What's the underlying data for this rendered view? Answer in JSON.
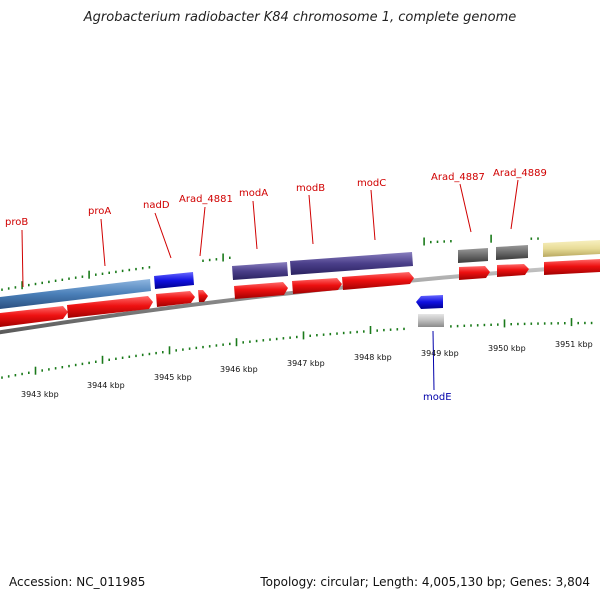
{
  "title": "Agrobacterium radiobacter K84 chromosome 1, complete genome",
  "footer": {
    "accession": "Accession: NC_011985",
    "topology": "Topology: circular; Length: 4,005,130 bp; Genes: 3,804"
  },
  "kbp_labels": [
    "3943 kbp",
    "3944 kbp",
    "3945 kbp",
    "3946 kbp",
    "3947 kbp",
    "3948 kbp",
    "3949 kbp",
    "3950 kbp",
    "3951 kbp"
  ],
  "gene_labels": [
    {
      "name": "proB",
      "color": "red"
    },
    {
      "name": "proA",
      "color": "red"
    },
    {
      "name": "nadD",
      "color": "red"
    },
    {
      "name": "Arad_4881",
      "color": "red"
    },
    {
      "name": "modA",
      "color": "red"
    },
    {
      "name": "modB",
      "color": "red"
    },
    {
      "name": "modC",
      "color": "red"
    },
    {
      "name": "Arad_4887",
      "color": "red"
    },
    {
      "name": "Arad_4889",
      "color": "red"
    },
    {
      "name": "modE",
      "color": "blue"
    }
  ],
  "colors": {
    "backbone": "#8a8a8a",
    "gene_red": "#ee1111",
    "tick_green": "#1a7a1a",
    "label_red": "#d00000",
    "label_blue": "#0000aa",
    "feature_steelblue": "#4a7fb8",
    "feature_blue": "#1010e0",
    "feature_purple": "#4b3f8a",
    "feature_gray": "#6a6a6a",
    "feature_khaki": "#e8dc98",
    "feature_lightgray": "#bdbdbd"
  }
}
